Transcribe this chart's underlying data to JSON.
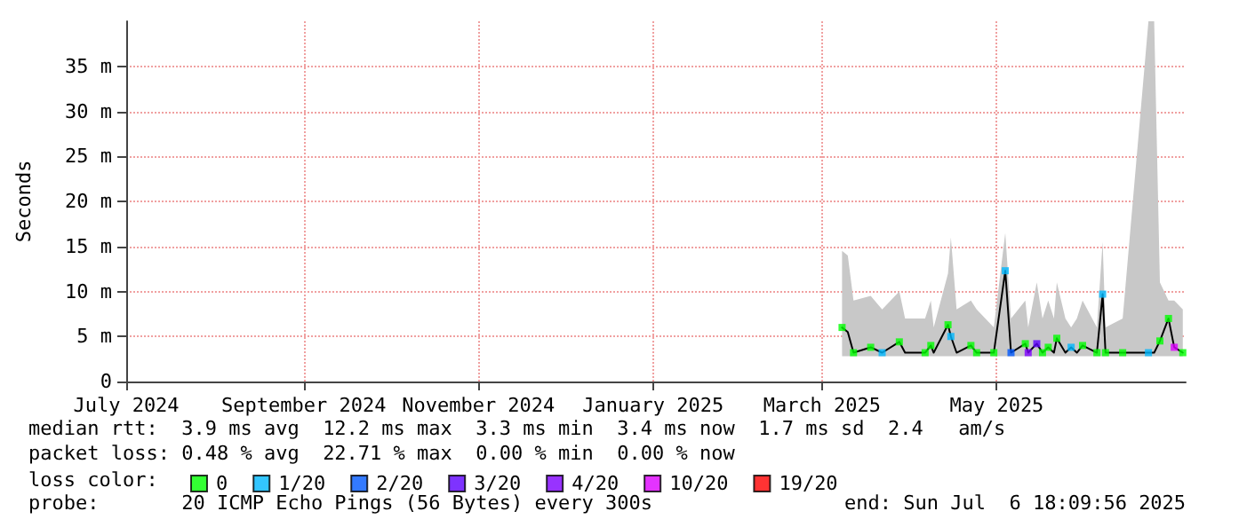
{
  "chart_data": {
    "type": "line",
    "ylabel": "Seconds",
    "xlim": [
      "2024-07-01",
      "2025-07-06"
    ],
    "xticks": [
      {
        "value": "2024-07-01",
        "label": "July 2024"
      },
      {
        "value": "2024-09-01",
        "label": "September 2024"
      },
      {
        "value": "2024-11-01",
        "label": "November 2024"
      },
      {
        "value": "2025-01-01",
        "label": "January 2025"
      },
      {
        "value": "2025-03-01",
        "label": "March 2025"
      },
      {
        "value": "2025-05-01",
        "label": "May 2025"
      }
    ],
    "ylim": [
      0,
      40
    ],
    "yticks": [
      {
        "value": 0,
        "label": "0"
      },
      {
        "value": 5,
        "label": "5 m"
      },
      {
        "value": 10,
        "label": "10 m"
      },
      {
        "value": 15,
        "label": "15 m"
      },
      {
        "value": 20,
        "label": "20 m"
      },
      {
        "value": 25,
        "label": "25 m"
      },
      {
        "value": 30,
        "label": "30 m"
      },
      {
        "value": 35,
        "label": "35 m"
      }
    ],
    "grid": true,
    "legend": "bottom",
    "legend_title": "loss color:",
    "marker": "square",
    "series": [
      {
        "marker": "none",
        "color": "#000000",
        "x": [
          "2025-03-08",
          "2025-03-10",
          "2025-03-12",
          "2025-03-18",
          "2025-03-22",
          "2025-03-28",
          "2025-03-30",
          "2025-04-06",
          "2025-04-08",
          "2025-04-09",
          "2025-04-14",
          "2025-04-15",
          "2025-04-17",
          "2025-04-22",
          "2025-04-24",
          "2025-04-30",
          "2025-05-04",
          "2025-05-06",
          "2025-05-11",
          "2025-05-12",
          "2025-05-15",
          "2025-05-17",
          "2025-05-19",
          "2025-05-21",
          "2025-05-22",
          "2025-05-25",
          "2025-05-27",
          "2025-05-29",
          "2025-05-31",
          "2025-06-05",
          "2025-06-07",
          "2025-06-08",
          "2025-06-14",
          "2025-06-23",
          "2025-06-25",
          "2025-06-27",
          "2025-06-30",
          "2025-07-02",
          "2025-07-05"
        ],
        "values": [
          6.0,
          5.5,
          3.2,
          3.8,
          3.2,
          4.4,
          3.2,
          3.2,
          4.0,
          3.2,
          6.3,
          5.0,
          3.2,
          4.0,
          3.2,
          3.2,
          12.3,
          3.2,
          4.2,
          3.2,
          4.2,
          3.2,
          3.8,
          3.2,
          4.8,
          3.2,
          3.8,
          3.2,
          4.0,
          3.2,
          9.7,
          3.2,
          3.2,
          3.2,
          3.2,
          4.5,
          7.0,
          3.8,
          3.2
        ],
        "lower": [
          2.8,
          2.8,
          2.8,
          2.8,
          2.8,
          2.8,
          2.8,
          2.8,
          2.8,
          2.8,
          2.8,
          2.8,
          2.8,
          2.8,
          2.8,
          2.8,
          2.8,
          2.8,
          2.8,
          2.8,
          2.8,
          2.8,
          2.8,
          2.8,
          2.8,
          2.8,
          2.8,
          2.8,
          2.8,
          2.8,
          2.8,
          2.8,
          2.8,
          2.8,
          2.8,
          2.8,
          2.8,
          2.8,
          2.8
        ],
        "upper": [
          14.5,
          14,
          9,
          9.5,
          8,
          10,
          7,
          7,
          9,
          6,
          12,
          16,
          8,
          9,
          8,
          6,
          16.5,
          7,
          9,
          6,
          11,
          7,
          9,
          7,
          11,
          7,
          6,
          7,
          9,
          6,
          15.5,
          6,
          7,
          40,
          40,
          11,
          9,
          9,
          8
        ]
      },
      {
        "type": "scatter",
        "name": "0",
        "color": "#00ff00",
        "x": [
          "2025-03-08",
          "2025-03-12",
          "2025-03-18",
          "2025-03-28",
          "2025-04-06",
          "2025-04-08",
          "2025-04-14",
          "2025-04-22",
          "2025-04-24",
          "2025-04-30",
          "2025-05-11",
          "2025-05-17",
          "2025-05-19",
          "2025-05-22",
          "2025-05-31",
          "2025-06-05",
          "2025-06-08",
          "2025-06-14",
          "2025-06-27",
          "2025-06-30",
          "2025-07-05"
        ],
        "values": [
          6.0,
          3.2,
          3.8,
          4.4,
          3.2,
          4.0,
          6.3,
          4.0,
          3.2,
          3.2,
          4.2,
          3.2,
          3.8,
          4.8,
          4.0,
          3.2,
          3.2,
          3.2,
          4.5,
          7.0,
          3.2
        ]
      },
      {
        "type": "scatter",
        "name": "1/20",
        "color": "#00b8ff",
        "x": [
          "2025-03-22",
          "2025-04-15",
          "2025-05-04",
          "2025-05-27",
          "2025-06-07",
          "2025-06-23"
        ],
        "values": [
          3.2,
          5.0,
          12.3,
          3.8,
          9.7,
          3.2
        ]
      },
      {
        "type": "scatter",
        "name": "2/20",
        "color": "#0059ff",
        "x": [
          "2025-05-06"
        ],
        "values": [
          3.2
        ]
      },
      {
        "type": "scatter",
        "name": "3/20",
        "color": "#5e00ff",
        "x": [
          "2025-05-15"
        ],
        "values": [
          4.2
        ]
      },
      {
        "type": "scatter",
        "name": "4/20",
        "color": "#7e00ff",
        "x": [
          "2025-05-12"
        ],
        "values": [
          3.2
        ]
      },
      {
        "type": "scatter",
        "name": "10/20",
        "color": "#dd00ff",
        "x": [
          "2025-07-02"
        ],
        "values": [
          3.8
        ]
      },
      {
        "type": "scatter",
        "name": "19/20",
        "color": "#ff0000"
      }
    ],
    "annotations": [
      "median rtt:  3.9 ms avg  12.2 ms max  3.3 ms min  3.4 ms now  1.7 ms sd  2.4   am/s",
      "packet loss: 0.48 % avg  22.71 % max  0.00 % min  0.00 % now",
      "probe:       20 ICMP Echo Pings (56 Bytes) every 300s",
      "end: Sun Jul  6 18:09:56 2025"
    ]
  }
}
